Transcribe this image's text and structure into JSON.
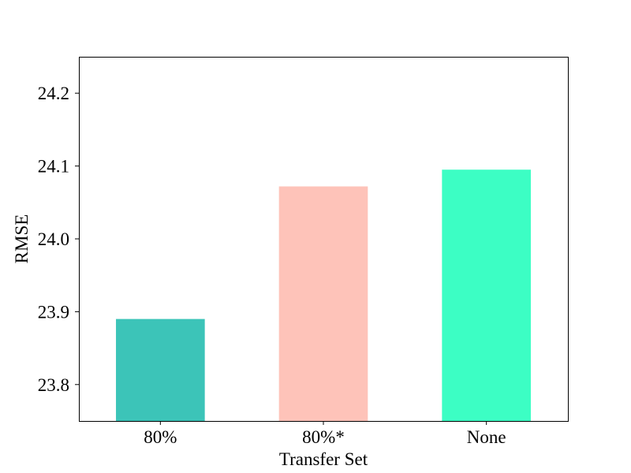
{
  "chart_data": {
    "type": "bar",
    "title": "",
    "xlabel": "Transfer Set",
    "ylabel": "RMSE",
    "categories": [
      "80%",
      "80%*",
      "None"
    ],
    "values": [
      23.89,
      24.072,
      24.095
    ],
    "colors": [
      "#3cc4b8",
      "#fec3b9",
      "#3cfec4"
    ],
    "ylim": [
      23.75,
      24.25
    ],
    "yticks": [
      23.8,
      23.9,
      24.0,
      24.1,
      24.2
    ],
    "ytick_labels": [
      "23.8",
      "23.9",
      "24.0",
      "24.1",
      "24.2"
    ],
    "grid": false,
    "legend": "none"
  }
}
